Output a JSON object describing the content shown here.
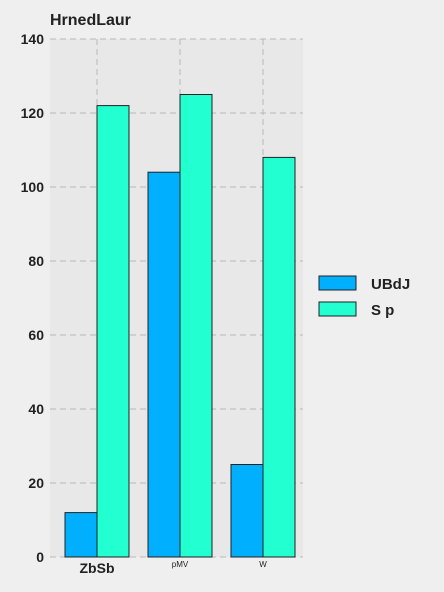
{
  "chart_data": {
    "type": "bar",
    "title": "HrnedLaur",
    "categories": [
      "ZbSb",
      "pMV",
      "W"
    ],
    "series": [
      {
        "name": "UBdJ",
        "color": "#00b0ff",
        "values": [
          12,
          104,
          25
        ]
      },
      {
        "name": "S p",
        "color": "#22ffd0",
        "values": [
          122,
          125,
          108
        ]
      }
    ],
    "yticks": [
      0,
      20,
      40,
      60,
      80,
      100,
      120,
      140
    ],
    "ylim": [
      0,
      140
    ],
    "grid": true,
    "legend": "right",
    "background": "#efefef",
    "plot_background": "#e8e8e8"
  }
}
